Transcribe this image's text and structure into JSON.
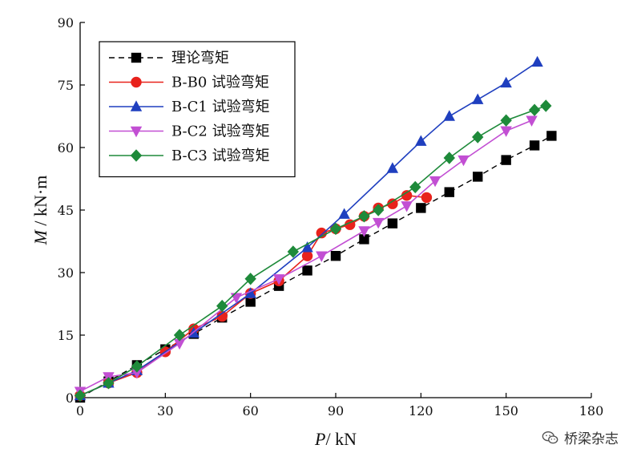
{
  "watermark": {
    "text": "桥梁杂志",
    "icon": "wechat-icon"
  },
  "chart_data": {
    "type": "line",
    "title": "",
    "xlabel_var": "P",
    "xlabel_unit": "/ kN",
    "ylabel_var": "M",
    "ylabel_unit": " / kN·m",
    "xlim": [
      0,
      180
    ],
    "ylim": [
      0,
      90
    ],
    "xticks": [
      0,
      30,
      60,
      90,
      120,
      150,
      180
    ],
    "yticks": [
      0,
      15,
      30,
      45,
      60,
      75,
      90
    ],
    "grid": false,
    "legend_position": "top-left",
    "series": [
      {
        "name": "理论弯矩",
        "marker": "square",
        "color": "#000000",
        "line": "dashed",
        "x": [
          0,
          10,
          20,
          30,
          40,
          50,
          60,
          70,
          80,
          90,
          100,
          110,
          120,
          130,
          140,
          150,
          160,
          166
        ],
        "y": [
          0,
          3.9,
          7.8,
          11.6,
          15.3,
          19.2,
          23.0,
          26.8,
          30.5,
          34.0,
          38.0,
          41.8,
          45.5,
          49.3,
          53.0,
          57.0,
          60.5,
          62.8
        ]
      },
      {
        "name": "B-B0 试验弯矩",
        "marker": "circle",
        "color": "#e8221c",
        "line": "solid",
        "x": [
          0,
          10,
          20,
          30,
          40,
          50,
          60,
          70,
          80,
          85,
          90,
          95,
          100,
          105,
          110,
          115,
          122
        ],
        "y": [
          0.5,
          3.5,
          6.0,
          11.0,
          16.5,
          19.5,
          25.0,
          28.0,
          34.0,
          39.5,
          40.5,
          41.5,
          43.5,
          45.5,
          46.5,
          48.5,
          48.0
        ]
      },
      {
        "name": "B-C1 试验弯矩",
        "marker": "triangle-up",
        "color": "#1f3fbf",
        "line": "solid",
        "x": [
          0,
          10,
          20,
          40,
          60,
          80,
          93,
          110,
          120,
          130,
          140,
          150,
          161
        ],
        "y": [
          0.5,
          3.5,
          6.5,
          15.5,
          25.0,
          36.0,
          44.0,
          55.0,
          61.5,
          67.5,
          71.5,
          75.5,
          80.5
        ]
      },
      {
        "name": "B-C2 试验弯矩",
        "marker": "triangle-down",
        "color": "#c24fd3",
        "line": "solid",
        "x": [
          0,
          10,
          20,
          35,
          55,
          70,
          85,
          100,
          105,
          115,
          125,
          135,
          150,
          159
        ],
        "y": [
          1.5,
          5.0,
          6.0,
          13.0,
          24.0,
          28.5,
          34.0,
          40.0,
          42.0,
          46.0,
          52.0,
          57.0,
          64.0,
          66.5
        ]
      },
      {
        "name": "B-C3 试验弯矩",
        "marker": "diamond",
        "color": "#1e8a3a",
        "line": "solid",
        "x": [
          0,
          10,
          20,
          35,
          50,
          60,
          75,
          90,
          100,
          105,
          118,
          130,
          140,
          150,
          160,
          164
        ],
        "y": [
          0.5,
          3.5,
          7.5,
          15.0,
          22.0,
          28.5,
          35.0,
          40.5,
          43.5,
          45.0,
          50.5,
          57.5,
          62.5,
          66.5,
          69.0,
          70.0
        ]
      }
    ]
  }
}
